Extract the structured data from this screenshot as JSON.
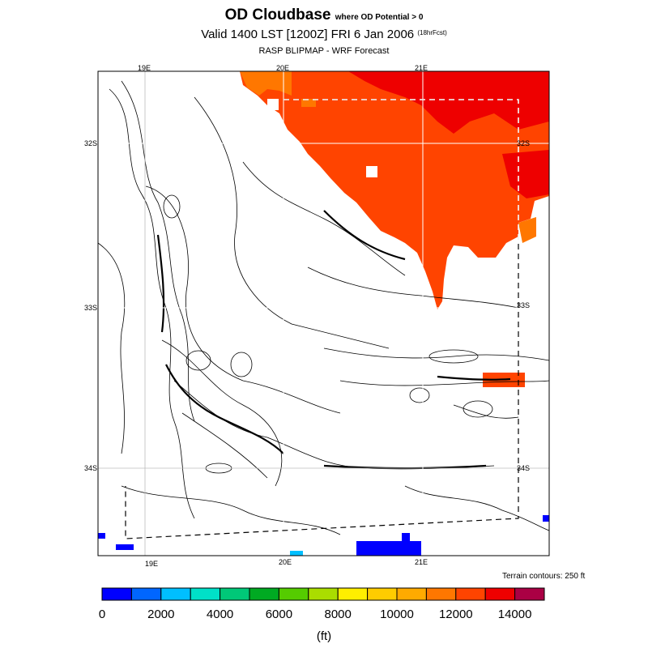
{
  "title": {
    "main": "OD Cloudbase",
    "qualifier": "where OD Potential > 0",
    "valid_line": "Valid 1400 LST [1200Z] FRI 6 Jan 2006",
    "forecast_hours": "(18hrFcst)",
    "source": "RASP BLIPMAP - WRF Forecast"
  },
  "map": {
    "lon_labels_top": [
      "19E",
      "20E",
      "21E"
    ],
    "lon_labels_bottom": [
      "19E",
      "20E",
      "21E"
    ],
    "lat_labels_left": [
      "32S",
      "33S",
      "34S"
    ],
    "lat_labels_right": [
      "32S",
      "33S",
      "34S"
    ],
    "terrain_note": "Terrain contours: 250 ft"
  },
  "colorbar": {
    "colors": [
      "#0000ff",
      "#0066ff",
      "#00bfff",
      "#00e0c8",
      "#00c878",
      "#00aa22",
      "#55cc00",
      "#aadd00",
      "#ffee00",
      "#ffcc00",
      "#ffaa00",
      "#ff7700",
      "#ff4400",
      "#ee0000",
      "#aa0044"
    ],
    "tick_labels": [
      "0",
      "2000",
      "4000",
      "6000",
      "8000",
      "10000",
      "12000",
      "14000"
    ],
    "units": "(ft)"
  }
}
